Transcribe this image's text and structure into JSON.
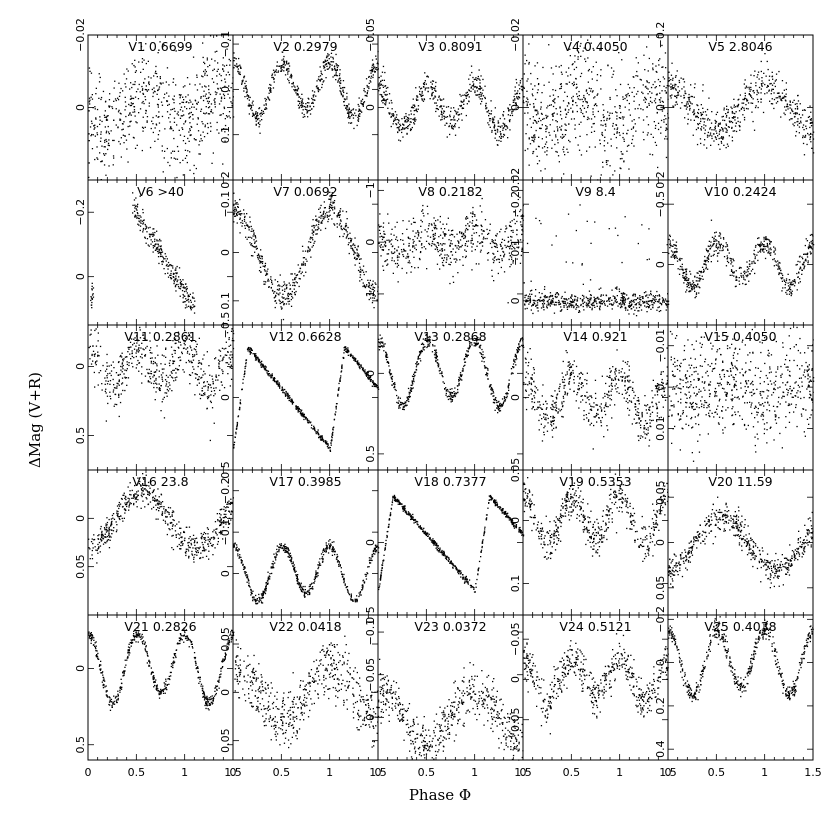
{
  "chart_data": {
    "type": "scatter",
    "title": "",
    "xlabel": "Phase Φ",
    "ylabel": "ΔMag (V+R)",
    "x_tick_labels": [
      "0",
      "0.5",
      "1",
      "1.5"
    ],
    "xlim": [
      0,
      1.5
    ],
    "panels": [
      {
        "name": "V1",
        "period": "0.6699",
        "ylim": [
          -0.02,
          0.02
        ],
        "y_ticks": [
          "−0.02",
          "0"
        ],
        "shape": "noise",
        "amp": 0.005,
        "scatter": 0.007
      },
      {
        "name": "V2",
        "period": "0.2979",
        "ylim": [
          -0.12,
          0.2
        ],
        "y_ticks": [
          "−0.1",
          "0",
          "0.1",
          "0.2"
        ],
        "shape": "ew",
        "amp": 0.12,
        "scatter": 0.012
      },
      {
        "name": "V3",
        "period": "0.8091",
        "ylim": [
          -0.05,
          0.05
        ],
        "y_ticks": [
          "−0.05",
          "0"
        ],
        "shape": "ew",
        "amp": 0.03,
        "scatter": 0.005
      },
      {
        "name": "V4",
        "period": "0.4050",
        "ylim": [
          -0.02,
          0.02
        ],
        "y_ticks": [
          "−0.02",
          "0",
          "0.02"
        ],
        "shape": "noise",
        "amp": 0.004,
        "scatter": 0.008
      },
      {
        "name": "V5",
        "period": "2.8046",
        "ylim": [
          -0.2,
          0.2
        ],
        "y_ticks": [
          "−0.2",
          "0",
          "0.2"
        ],
        "shape": "gap",
        "amp": 0.1,
        "scatter": 0.03
      },
      {
        "name": "V6",
        "period": ">40",
        "ylim": [
          -0.3,
          0.15
        ],
        "y_ticks": [
          "−0.2",
          "0"
        ],
        "shape": "trend",
        "amp": 0.15,
        "scatter": 0.02
      },
      {
        "name": "V7",
        "period": "0.0692",
        "ylim": [
          -0.15,
          0.15
        ],
        "y_ticks": [
          "−0.1",
          "0",
          "0.1"
        ],
        "shape": "sine",
        "amp": 0.09,
        "scatter": 0.015
      },
      {
        "name": "V8",
        "period": "0.2182",
        "ylim": [
          -1.2,
          1.6
        ],
        "y_ticks": [
          "−1",
          "0",
          "1"
        ],
        "shape": "ew",
        "amp": 0.4,
        "scatter": 0.25
      },
      {
        "name": "V9",
        "period": "8.4",
        "ylim": [
          -0.25,
          0.05
        ],
        "y_ticks": [
          "−0.2",
          "−0.1",
          "0"
        ],
        "shape": "spikes",
        "amp": 0.2,
        "scatter": 0.01
      },
      {
        "name": "V10",
        "period": "0.2424",
        "ylim": [
          -0.7,
          0.5
        ],
        "y_ticks": [
          "−0.5",
          "0"
        ],
        "shape": "ew",
        "amp": 0.35,
        "scatter": 0.05
      },
      {
        "name": "V11",
        "period": "0.2861",
        "ylim": [
          -0.3,
          0.75
        ],
        "y_ticks": [
          "0",
          "0.5"
        ],
        "shape": "ew",
        "amp": 0.3,
        "scatter": 0.1
      },
      {
        "name": "V12",
        "period": "0.6628",
        "ylim": [
          -0.5,
          0.5
        ],
        "y_ticks": [
          "−0.5",
          "0",
          "0.5"
        ],
        "shape": "rrab",
        "amp": 0.7,
        "scatter": 0.01
      },
      {
        "name": "V13",
        "period": "0.2868",
        "ylim": [
          -0.3,
          0.6
        ],
        "y_ticks": [
          "0",
          "0.5"
        ],
        "shape": "ew",
        "amp": 0.4,
        "scatter": 0.02
      },
      {
        "name": "V14",
        "period": "0.921",
        "ylim": [
          -0.05,
          0.05
        ],
        "y_ticks": [
          "0",
          "0.05"
        ],
        "shape": "ew",
        "amp": 0.03,
        "scatter": 0.008
      },
      {
        "name": "V15",
        "period": "0.4050",
        "ylim": [
          -0.015,
          0.02
        ],
        "y_ticks": [
          "−0.01",
          "0",
          "0.01"
        ],
        "shape": "noise",
        "amp": 0.002,
        "scatter": 0.006
      },
      {
        "name": "V16",
        "period": "23.8",
        "ylim": [
          -0.05,
          0.1
        ],
        "y_ticks": [
          "0",
          "0.05"
        ],
        "shape": "trend2",
        "amp": 0.05,
        "scatter": 0.008
      },
      {
        "name": "V17",
        "period": "0.3985",
        "ylim": [
          -0.25,
          0.1
        ],
        "y_ticks": [
          "−0.2",
          "−0.1",
          "0"
        ],
        "shape": "ew",
        "amp": 0.13,
        "scatter": 0.006
      },
      {
        "name": "V18",
        "period": "0.7377",
        "ylim": [
          -0.5,
          0.5
        ],
        "y_ticks": [
          "0",
          "0.5"
        ],
        "shape": "rrab",
        "amp": 0.65,
        "scatter": 0.01
      },
      {
        "name": "V19",
        "period": "0.5353",
        "ylim": [
          -0.08,
          0.15
        ],
        "y_ticks": [
          "0",
          "0.1"
        ],
        "shape": "ew",
        "amp": 0.08,
        "scatter": 0.015
      },
      {
        "name": "V20",
        "period": "11.59",
        "ylim": [
          -0.08,
          0.08
        ],
        "y_ticks": [
          "−0.05",
          "0",
          "0.05"
        ],
        "shape": "trend2",
        "amp": 0.05,
        "scatter": 0.008
      },
      {
        "name": "V21",
        "period": "0.2826",
        "ylim": [
          -0.35,
          0.6
        ],
        "y_ticks": [
          "0",
          "0.5"
        ],
        "shape": "ew",
        "amp": 0.45,
        "scatter": 0.02
      },
      {
        "name": "V22",
        "period": "0.0418",
        "ylim": [
          -0.08,
          0.07
        ],
        "y_ticks": [
          "−0.05",
          "0",
          "0.05"
        ],
        "shape": "sine",
        "amp": 0.025,
        "scatter": 0.015
      },
      {
        "name": "V23",
        "period": "0.0372",
        "ylim": [
          -0.12,
          0.05
        ],
        "y_ticks": [
          "−0.1",
          "−0.05",
          "0"
        ],
        "shape": "sine",
        "amp": 0.03,
        "scatter": 0.015
      },
      {
        "name": "V24",
        "period": "0.5121",
        "ylim": [
          -0.08,
          0.1
        ],
        "y_ticks": [
          "−0.05",
          "0",
          "0.05"
        ],
        "shape": "ew",
        "amp": 0.05,
        "scatter": 0.012
      },
      {
        "name": "V25",
        "period": "0.4038",
        "ylim": [
          -0.22,
          0.45
        ],
        "y_ticks": [
          "−0.2",
          "0",
          "0.2",
          "0.4"
        ],
        "shape": "ew",
        "amp": 0.3,
        "scatter": 0.02
      }
    ]
  }
}
